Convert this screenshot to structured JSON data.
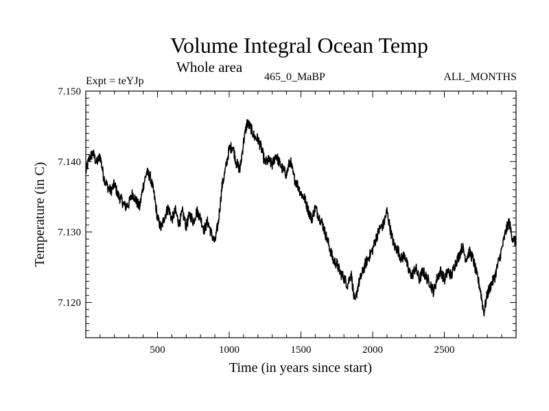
{
  "header": {
    "title": "Volume Integral Ocean Temp",
    "subtitle": "Whole area",
    "experiment": "Expt = teYJp",
    "experiment_name": "465_0_MaBP",
    "months": "ALL_MONTHS"
  },
  "chart_data": {
    "type": "line",
    "title": "Volume Integral Ocean Temp",
    "xlabel": "Time (in years since start)",
    "ylabel": "Temperature (in C)",
    "xlim": [
      0,
      3000
    ],
    "ylim": [
      7.115,
      7.15
    ],
    "xticks": [
      500,
      1000,
      1500,
      2000,
      2500
    ],
    "xtick_labels": [
      "500",
      "1000",
      "1500",
      "2000",
      "2500"
    ],
    "yticks": [
      7.12,
      7.13,
      7.14,
      7.15
    ],
    "ytick_labels": [
      "7.120",
      "7.130",
      "7.140",
      "7.150"
    ],
    "grid": false,
    "series": [
      {
        "name": "Volume Integral Ocean Temp",
        "color": "#000000",
        "x": [
          0,
          25,
          50,
          75,
          100,
          125,
          150,
          175,
          200,
          225,
          250,
          275,
          300,
          325,
          350,
          375,
          400,
          425,
          450,
          475,
          500,
          525,
          550,
          575,
          600,
          625,
          650,
          675,
          700,
          725,
          750,
          775,
          800,
          825,
          850,
          875,
          900,
          925,
          950,
          975,
          1000,
          1025,
          1050,
          1075,
          1100,
          1125,
          1150,
          1175,
          1200,
          1225,
          1250,
          1275,
          1300,
          1325,
          1350,
          1375,
          1400,
          1425,
          1450,
          1475,
          1500,
          1525,
          1550,
          1575,
          1600,
          1625,
          1650,
          1675,
          1700,
          1725,
          1750,
          1775,
          1800,
          1825,
          1850,
          1875,
          1900,
          1925,
          1950,
          1975,
          2000,
          2025,
          2050,
          2075,
          2100,
          2125,
          2150,
          2175,
          2200,
          2225,
          2250,
          2275,
          2300,
          2325,
          2350,
          2375,
          2400,
          2425,
          2450,
          2475,
          2500,
          2525,
          2550,
          2575,
          2600,
          2625,
          2650,
          2675,
          2700,
          2725,
          2750,
          2775,
          2800,
          2825,
          2850,
          2875,
          2900,
          2925,
          2950,
          2975,
          3000
        ],
        "values": [
          7.1385,
          7.1405,
          7.1412,
          7.1398,
          7.1408,
          7.1378,
          7.1365,
          7.1358,
          7.1368,
          7.1352,
          7.1345,
          7.1336,
          7.134,
          7.1355,
          7.1345,
          7.1335,
          7.1365,
          7.1385,
          7.1378,
          7.1355,
          7.132,
          7.1305,
          7.1322,
          7.1335,
          7.1318,
          7.133,
          7.1312,
          7.1328,
          7.1308,
          7.1325,
          7.1315,
          7.133,
          7.132,
          7.1303,
          7.1315,
          7.1298,
          7.1285,
          7.1315,
          7.1365,
          7.139,
          7.1418,
          7.1422,
          7.1398,
          7.1388,
          7.1428,
          7.1455,
          7.1448,
          7.1435,
          7.1432,
          7.1418,
          7.1398,
          7.1402,
          7.1395,
          7.141,
          7.1398,
          7.1388,
          7.1382,
          7.1402,
          7.1378,
          7.1368,
          7.1355,
          7.1348,
          7.1332,
          7.1318,
          7.1335,
          7.1322,
          7.1312,
          7.1295,
          7.1278,
          7.126,
          7.1255,
          7.1242,
          7.1235,
          7.1225,
          7.1242,
          7.1198,
          7.1225,
          7.124,
          7.1255,
          7.1265,
          7.1275,
          7.1292,
          7.1305,
          7.131,
          7.133,
          7.1302,
          7.128,
          7.1275,
          7.1262,
          7.1268,
          7.1245,
          7.1238,
          7.125,
          7.1232,
          7.1245,
          7.1235,
          7.1228,
          7.1215,
          7.1235,
          7.1245,
          7.1232,
          7.1245,
          7.1238,
          7.1255,
          7.1265,
          7.128,
          7.1262,
          7.1272,
          7.1262,
          7.124,
          7.122,
          7.1185,
          7.1212,
          7.1225,
          7.1235,
          7.1255,
          7.1275,
          7.1298,
          7.1315,
          7.1292,
          7.1285
        ]
      }
    ]
  }
}
